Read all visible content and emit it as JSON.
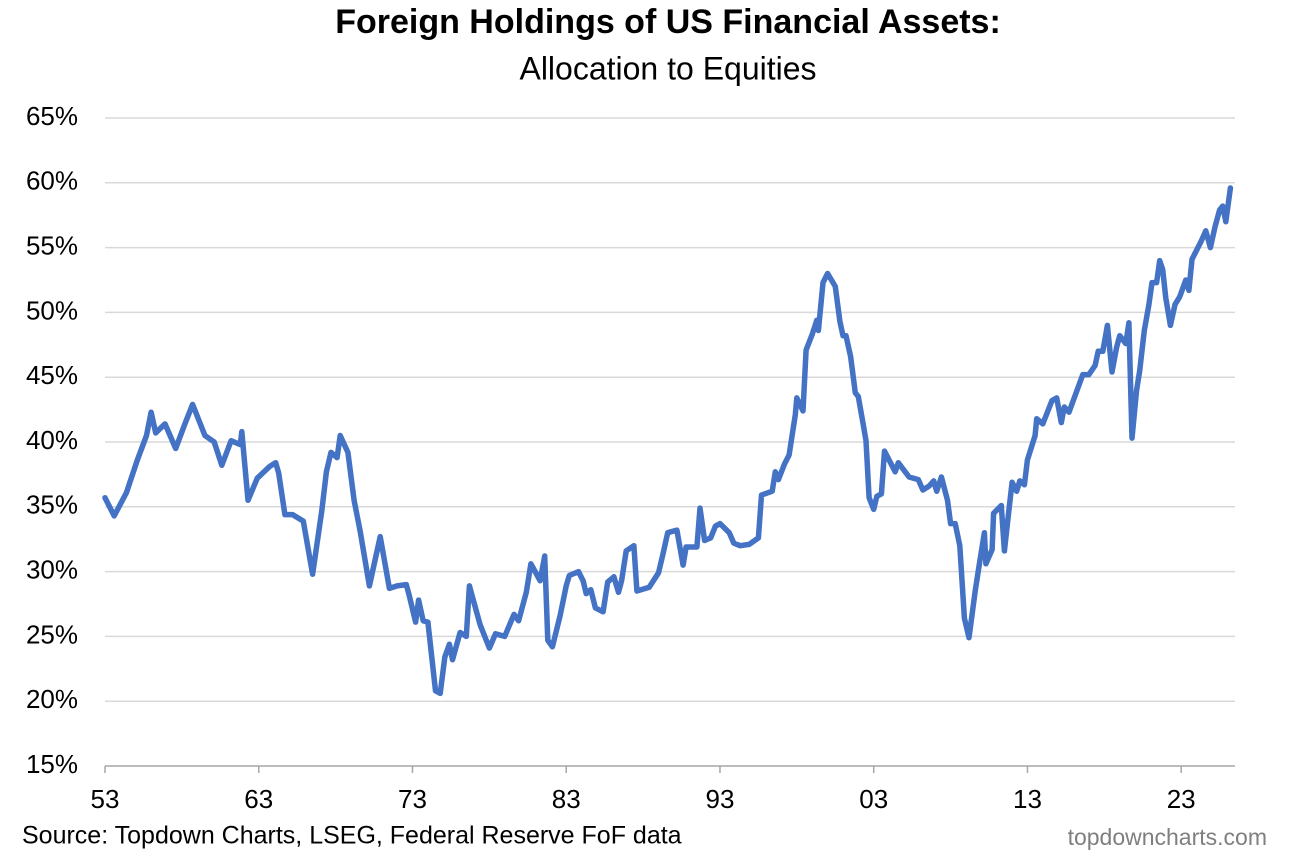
{
  "chart_data": {
    "type": "line",
    "title": "Foreign Holdings of US Financial Assets:",
    "subtitle": "Allocation to Equities",
    "source": "Source: Topdown Charts, LSEG, Federal Reserve FoF data",
    "watermark": "topdowncharts.com",
    "xlim": [
      1953,
      2026.5
    ],
    "ylim": [
      15,
      65
    ],
    "grid": true,
    "xticks": [
      {
        "value": 1953,
        "label": "53"
      },
      {
        "value": 1963,
        "label": "63"
      },
      {
        "value": 1973,
        "label": "73"
      },
      {
        "value": 1983,
        "label": "83"
      },
      {
        "value": 1993,
        "label": "93"
      },
      {
        "value": 2003,
        "label": "03"
      },
      {
        "value": 2013,
        "label": "13"
      },
      {
        "value": 2023,
        "label": "23"
      }
    ],
    "yticks": [
      {
        "value": 15,
        "label": "15%"
      },
      {
        "value": 20,
        "label": "20%"
      },
      {
        "value": 25,
        "label": "25%"
      },
      {
        "value": 30,
        "label": "30%"
      },
      {
        "value": 35,
        "label": "35%"
      },
      {
        "value": 40,
        "label": "40%"
      },
      {
        "value": 45,
        "label": "45%"
      },
      {
        "value": 50,
        "label": "50%"
      },
      {
        "value": 55,
        "label": "55%"
      },
      {
        "value": 60,
        "label": "60%"
      },
      {
        "value": 65,
        "label": "65%"
      }
    ],
    "x": [
      1953.0,
      1953.6,
      1954.4,
      1955.1,
      1955.7,
      1956.0,
      1956.3,
      1956.9,
      1957.6,
      1958.2,
      1958.7,
      1959.5,
      1960.1,
      1960.6,
      1961.2,
      1961.8,
      1961.9,
      1962.3,
      1962.9,
      1963.7,
      1964.1,
      1964.3,
      1964.7,
      1965.2,
      1965.9,
      1966.5,
      1967.1,
      1967.4,
      1967.7,
      1968.1,
      1968.3,
      1968.8,
      1969.2,
      1969.6,
      1970.2,
      1970.9,
      1971.5,
      1972.0,
      1972.6,
      1972.8,
      1973.2,
      1973.4,
      1973.7,
      1974.0,
      1974.5,
      1974.8,
      1975.1,
      1975.4,
      1975.6,
      1976.1,
      1976.5,
      1976.7,
      1977.4,
      1978.0,
      1978.4,
      1979.0,
      1979.6,
      1979.9,
      1980.4,
      1980.7,
      1981.3,
      1981.6,
      1981.8,
      1982.1,
      1982.6,
      1983.0,
      1983.2,
      1983.8,
      1984.1,
      1984.3,
      1984.6,
      1984.9,
      1985.4,
      1985.7,
      1986.1,
      1986.4,
      1986.6,
      1986.9,
      1987.4,
      1987.6,
      1988.4,
      1989.0,
      1989.3,
      1989.6,
      1990.2,
      1990.6,
      1990.8,
      1991.5,
      1991.7,
      1992.0,
      1992.4,
      1992.7,
      1993.0,
      1993.6,
      1993.9,
      1994.3,
      1994.9,
      1995.5,
      1995.7,
      1996.4,
      1996.6,
      1996.8,
      1997.2,
      1997.5,
      1997.9,
      1998.0,
      1998.4,
      1998.6,
      1999.0,
      1999.3,
      1999.4,
      1999.7,
      2000.0,
      2000.5,
      2000.8,
      2001.0,
      2001.2,
      2001.5,
      2001.8,
      2002.0,
      2002.3,
      2002.5,
      2002.7,
      2003.0,
      2003.2,
      2003.5,
      2003.7,
      2004.4,
      2004.6,
      2005.3,
      2005.9,
      2006.2,
      2006.6,
      2006.9,
      2007.1,
      2007.4,
      2007.8,
      2008.0,
      2008.3,
      2008.6,
      2008.9,
      2009.2,
      2009.6,
      2009.9,
      2010.2,
      2010.3,
      2010.7,
      2010.8,
      2011.3,
      2011.5,
      2011.8,
      2012.0,
      2012.3,
      2012.5,
      2012.8,
      2013.0,
      2013.5,
      2013.6,
      2014.0,
      2014.6,
      2014.9,
      2015.2,
      2015.4,
      2015.7,
      2016.6,
      2017.0,
      2017.4,
      2017.6,
      2017.9,
      2018.2,
      2018.5,
      2018.8,
      2019.0,
      2019.4,
      2019.6,
      2019.8,
      2020.1,
      2020.3,
      2020.6,
      2020.9,
      2021.1,
      2021.4,
      2021.6,
      2021.8,
      2022.0,
      2022.3,
      2022.6,
      2022.9,
      2023.3,
      2023.5,
      2023.7,
      2024.3,
      2024.6,
      2024.9,
      2025.2,
      2025.5,
      2025.7,
      2025.9,
      2026.2
    ],
    "series": [
      {
        "name": "Allocation to Equities",
        "color": "#4472c4",
        "values": [
          35.7,
          34.3,
          36.1,
          38.6,
          40.5,
          42.3,
          40.7,
          41.4,
          39.5,
          41.4,
          42.9,
          40.5,
          40.0,
          38.2,
          40.1,
          39.8,
          40.8,
          35.5,
          37.2,
          38.1,
          38.4,
          37.6,
          34.4,
          34.4,
          33.9,
          29.8,
          34.7,
          37.7,
          39.2,
          38.8,
          40.5,
          39.2,
          35.5,
          33.1,
          28.9,
          32.7,
          28.7,
          28.9,
          29.0,
          28.1,
          26.1,
          27.8,
          26.2,
          26.1,
          20.8,
          20.6,
          23.4,
          24.4,
          23.2,
          25.3,
          25.0,
          28.9,
          25.9,
          24.1,
          25.2,
          25.0,
          26.7,
          26.2,
          28.4,
          30.6,
          29.3,
          31.2,
          24.7,
          24.2,
          26.6,
          28.9,
          29.7,
          30.0,
          29.3,
          28.3,
          28.6,
          27.2,
          26.9,
          29.2,
          29.6,
          28.4,
          29.3,
          31.6,
          32.0,
          28.5,
          28.8,
          29.9,
          31.4,
          33.0,
          33.2,
          30.5,
          31.9,
          31.9,
          34.9,
          32.4,
          32.6,
          33.5,
          33.7,
          33.0,
          32.2,
          32.0,
          32.1,
          32.6,
          35.9,
          36.2,
          37.7,
          37.1,
          38.3,
          39.0,
          42.1,
          43.4,
          42.4,
          47.1,
          48.3,
          49.4,
          48.6,
          52.3,
          53.0,
          52.0,
          49.3,
          48.2,
          48.2,
          46.6,
          43.8,
          43.5,
          41.5,
          40.1,
          35.7,
          34.8,
          35.8,
          36.0,
          39.3,
          37.7,
          38.4,
          37.3,
          37.1,
          36.3,
          36.6,
          37.0,
          36.2,
          37.3,
          35.5,
          33.7,
          33.7,
          32.0,
          26.4,
          24.9,
          28.5,
          30.8,
          33.0,
          30.6,
          31.7,
          34.5,
          35.1,
          31.6,
          34.8,
          36.9,
          36.2,
          37.0,
          36.7,
          38.6,
          40.5,
          41.8,
          41.4,
          43.2,
          43.4,
          41.5,
          42.7,
          42.3,
          45.2,
          45.2,
          45.9,
          47.0,
          47.0,
          49.0,
          45.4,
          47.3,
          48.2,
          47.6,
          49.2,
          40.3,
          44.0,
          45.5,
          48.6,
          50.6,
          52.3,
          52.3,
          54.0,
          53.3,
          51.1,
          49.0,
          50.6,
          51.2,
          52.5,
          51.7,
          54.1,
          55.5,
          56.3,
          55.0,
          56.6,
          57.9,
          58.2,
          57.0,
          59.6
        ]
      }
    ]
  }
}
